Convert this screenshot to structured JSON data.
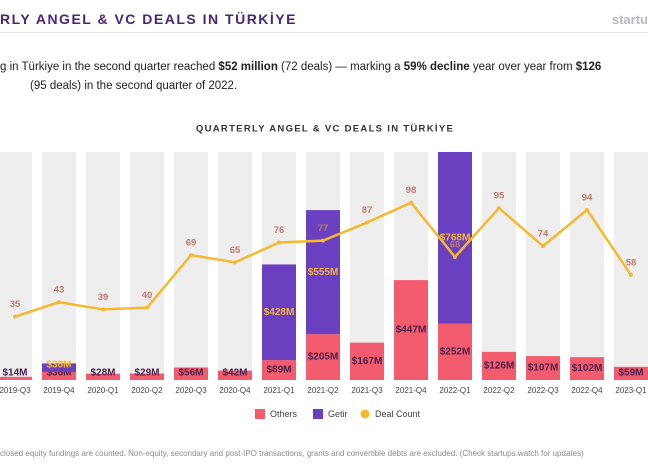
{
  "header": {
    "title": "RLY ANGEL & VC DEALS IN TÜRKİYE",
    "brand": "startu"
  },
  "lead": {
    "line1_a": "g in Türkiye in the second quarter reached ",
    "line1_b": "$52 million",
    "line1_c": " (72 deals) — marking a ",
    "line1_d": "59% decline",
    "line1_e": " year over year from ",
    "line1_f": "$126",
    "line2": "(95 deals) in the second quarter of 2022."
  },
  "footnote": "closed equity fundings are counted. Non-equity, secondary and post-IPO transactions, grants and convertible debts are excluded. (Check startups.watch for updates)",
  "chart_data": {
    "type": "bar",
    "title": "QUARTERLY ANGEL & VC DEALS IN TÜRKİYE",
    "categories": [
      "2019-Q3",
      "2019-Q4",
      "2020-Q1",
      "2020-Q2",
      "2020-Q3",
      "2020-Q4",
      "2021-Q1",
      "2021-Q2",
      "2021-Q3",
      "2021-Q4",
      "2022-Q1",
      "2022-Q2",
      "2022-Q3",
      "2022-Q4",
      "2023-Q1"
    ],
    "ylim": [
      0,
      1020
    ],
    "y2lim": [
      0,
      126
    ],
    "series": [
      {
        "name": "Others",
        "color": "#f25c6e",
        "values": [
          14,
          36,
          28,
          29,
          56,
          42,
          89,
          205,
          167,
          447,
          252,
          126,
          107,
          102,
          59
        ],
        "value_labels": [
          "$14M",
          "$36M",
          "$28M",
          "$29M",
          "$56M",
          "$42M",
          "$89M",
          "$205M",
          "$167M",
          "$447M",
          "$252M",
          "$126M",
          "$107M",
          "$102M",
          "$59M"
        ]
      },
      {
        "name": "Getir",
        "color": "#6a3fc0",
        "values": [
          null,
          38,
          null,
          null,
          null,
          null,
          428,
          555,
          null,
          null,
          768,
          null,
          null,
          null,
          null
        ],
        "value_labels": [
          null,
          "$38M",
          null,
          null,
          null,
          null,
          "$428M",
          "$555M",
          null,
          null,
          "$768M",
          null,
          null,
          null,
          null
        ]
      },
      {
        "name": "Deal Count",
        "color": "#f5b82e",
        "type": "line",
        "axis": "y2",
        "values": [
          35,
          43,
          39,
          40,
          69,
          65,
          76,
          77,
          87,
          98,
          68,
          95,
          74,
          94,
          58
        ]
      }
    ]
  }
}
